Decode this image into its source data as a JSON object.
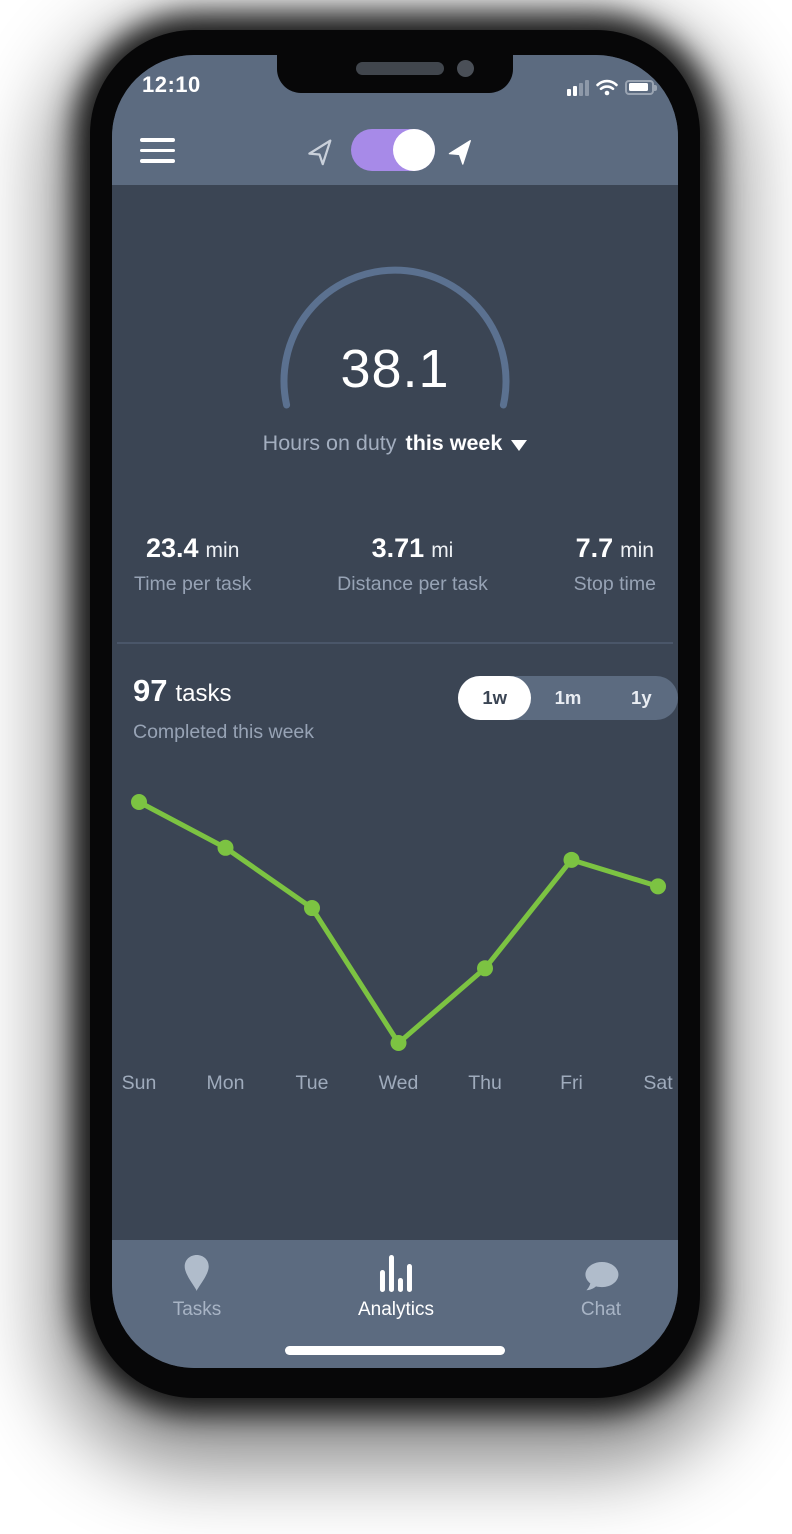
{
  "status_bar": {
    "time": "12:10",
    "icons": [
      "signal-icon",
      "wifi-icon",
      "battery-icon"
    ]
  },
  "nav_bar": {
    "menu_icon": "hamburger-icon",
    "left_icon": "location-arrow-outline-icon",
    "right_icon": "location-arrow-filled-icon",
    "toggle": {
      "state": "on",
      "track_color": "#a78ae8",
      "knob_color": "#ffffff"
    }
  },
  "gauge": {
    "value": "38.1",
    "label_muted": "Hours on duty",
    "label_strong": "this week",
    "dropdown_icon": "caret-down-icon",
    "arc_color": "#5b7190"
  },
  "stats": [
    {
      "value": "23.4",
      "unit": "min",
      "label": "Time per task"
    },
    {
      "value": "3.71",
      "unit": "mi",
      "label": "Distance per task"
    },
    {
      "value": "7.7",
      "unit": "min",
      "label": "Stop time"
    }
  ],
  "tasks_summary": {
    "count": "97",
    "unit": "tasks",
    "subtitle": "Completed this week"
  },
  "range_selector": {
    "options": [
      "1w",
      "1m",
      "1y"
    ],
    "selected": "1w"
  },
  "chart_data": {
    "type": "line",
    "title": "97 tasks completed this week",
    "categories": [
      "Sun",
      "Mon",
      "Tue",
      "Wed",
      "Thu",
      "Fri",
      "Sat"
    ],
    "values_norm": [
      1.0,
      0.81,
      0.56,
      0.0,
      0.31,
      0.76,
      0.65
    ],
    "y_axis": "unlabeled",
    "grid": "off",
    "line_color": "#7cc342",
    "point_style": "filled-circle"
  },
  "tab_bar": {
    "items": [
      {
        "label": "Tasks",
        "icon": "map-pin-icon",
        "active": false
      },
      {
        "label": "Analytics",
        "icon": "bar-chart-icon",
        "active": true
      },
      {
        "label": "Chat",
        "icon": "chat-bubble-icon",
        "active": false
      }
    ]
  },
  "colors": {
    "content_background": "#3b4554",
    "bar_background": "#5c6b80",
    "accent_green": "#7cc342",
    "accent_purple": "#a78ae8",
    "muted_text": "#97a3b5"
  }
}
